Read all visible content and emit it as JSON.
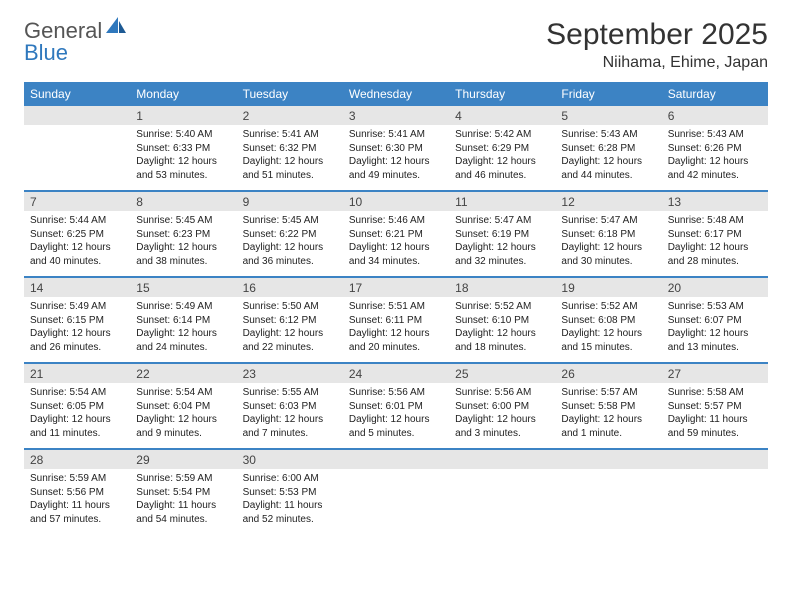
{
  "brand": {
    "text1": "General",
    "text2": "Blue"
  },
  "title": "September 2025",
  "location": "Niihama, Ehime, Japan",
  "colors": {
    "header_bg": "#3c83c4",
    "header_fg": "#ffffff",
    "num_row_bg": "#e6e6e6",
    "week_border": "#3c83c4",
    "brand_blue": "#2f78bd",
    "brand_gray": "#555555",
    "page_bg": "#ffffff",
    "text": "#222222"
  },
  "day_names": [
    "Sunday",
    "Monday",
    "Tuesday",
    "Wednesday",
    "Thursday",
    "Friday",
    "Saturday"
  ],
  "weeks": [
    {
      "nums": [
        "",
        "1",
        "2",
        "3",
        "4",
        "5",
        "6"
      ],
      "cells": [
        null,
        {
          "sunrise": "Sunrise: 5:40 AM",
          "sunset": "Sunset: 6:33 PM",
          "day1": "Daylight: 12 hours",
          "day2": "and 53 minutes."
        },
        {
          "sunrise": "Sunrise: 5:41 AM",
          "sunset": "Sunset: 6:32 PM",
          "day1": "Daylight: 12 hours",
          "day2": "and 51 minutes."
        },
        {
          "sunrise": "Sunrise: 5:41 AM",
          "sunset": "Sunset: 6:30 PM",
          "day1": "Daylight: 12 hours",
          "day2": "and 49 minutes."
        },
        {
          "sunrise": "Sunrise: 5:42 AM",
          "sunset": "Sunset: 6:29 PM",
          "day1": "Daylight: 12 hours",
          "day2": "and 46 minutes."
        },
        {
          "sunrise": "Sunrise: 5:43 AM",
          "sunset": "Sunset: 6:28 PM",
          "day1": "Daylight: 12 hours",
          "day2": "and 44 minutes."
        },
        {
          "sunrise": "Sunrise: 5:43 AM",
          "sunset": "Sunset: 6:26 PM",
          "day1": "Daylight: 12 hours",
          "day2": "and 42 minutes."
        }
      ]
    },
    {
      "nums": [
        "7",
        "8",
        "9",
        "10",
        "11",
        "12",
        "13"
      ],
      "cells": [
        {
          "sunrise": "Sunrise: 5:44 AM",
          "sunset": "Sunset: 6:25 PM",
          "day1": "Daylight: 12 hours",
          "day2": "and 40 minutes."
        },
        {
          "sunrise": "Sunrise: 5:45 AM",
          "sunset": "Sunset: 6:23 PM",
          "day1": "Daylight: 12 hours",
          "day2": "and 38 minutes."
        },
        {
          "sunrise": "Sunrise: 5:45 AM",
          "sunset": "Sunset: 6:22 PM",
          "day1": "Daylight: 12 hours",
          "day2": "and 36 minutes."
        },
        {
          "sunrise": "Sunrise: 5:46 AM",
          "sunset": "Sunset: 6:21 PM",
          "day1": "Daylight: 12 hours",
          "day2": "and 34 minutes."
        },
        {
          "sunrise": "Sunrise: 5:47 AM",
          "sunset": "Sunset: 6:19 PM",
          "day1": "Daylight: 12 hours",
          "day2": "and 32 minutes."
        },
        {
          "sunrise": "Sunrise: 5:47 AM",
          "sunset": "Sunset: 6:18 PM",
          "day1": "Daylight: 12 hours",
          "day2": "and 30 minutes."
        },
        {
          "sunrise": "Sunrise: 5:48 AM",
          "sunset": "Sunset: 6:17 PM",
          "day1": "Daylight: 12 hours",
          "day2": "and 28 minutes."
        }
      ]
    },
    {
      "nums": [
        "14",
        "15",
        "16",
        "17",
        "18",
        "19",
        "20"
      ],
      "cells": [
        {
          "sunrise": "Sunrise: 5:49 AM",
          "sunset": "Sunset: 6:15 PM",
          "day1": "Daylight: 12 hours",
          "day2": "and 26 minutes."
        },
        {
          "sunrise": "Sunrise: 5:49 AM",
          "sunset": "Sunset: 6:14 PM",
          "day1": "Daylight: 12 hours",
          "day2": "and 24 minutes."
        },
        {
          "sunrise": "Sunrise: 5:50 AM",
          "sunset": "Sunset: 6:12 PM",
          "day1": "Daylight: 12 hours",
          "day2": "and 22 minutes."
        },
        {
          "sunrise": "Sunrise: 5:51 AM",
          "sunset": "Sunset: 6:11 PM",
          "day1": "Daylight: 12 hours",
          "day2": "and 20 minutes."
        },
        {
          "sunrise": "Sunrise: 5:52 AM",
          "sunset": "Sunset: 6:10 PM",
          "day1": "Daylight: 12 hours",
          "day2": "and 18 minutes."
        },
        {
          "sunrise": "Sunrise: 5:52 AM",
          "sunset": "Sunset: 6:08 PM",
          "day1": "Daylight: 12 hours",
          "day2": "and 15 minutes."
        },
        {
          "sunrise": "Sunrise: 5:53 AM",
          "sunset": "Sunset: 6:07 PM",
          "day1": "Daylight: 12 hours",
          "day2": "and 13 minutes."
        }
      ]
    },
    {
      "nums": [
        "21",
        "22",
        "23",
        "24",
        "25",
        "26",
        "27"
      ],
      "cells": [
        {
          "sunrise": "Sunrise: 5:54 AM",
          "sunset": "Sunset: 6:05 PM",
          "day1": "Daylight: 12 hours",
          "day2": "and 11 minutes."
        },
        {
          "sunrise": "Sunrise: 5:54 AM",
          "sunset": "Sunset: 6:04 PM",
          "day1": "Daylight: 12 hours",
          "day2": "and 9 minutes."
        },
        {
          "sunrise": "Sunrise: 5:55 AM",
          "sunset": "Sunset: 6:03 PM",
          "day1": "Daylight: 12 hours",
          "day2": "and 7 minutes."
        },
        {
          "sunrise": "Sunrise: 5:56 AM",
          "sunset": "Sunset: 6:01 PM",
          "day1": "Daylight: 12 hours",
          "day2": "and 5 minutes."
        },
        {
          "sunrise": "Sunrise: 5:56 AM",
          "sunset": "Sunset: 6:00 PM",
          "day1": "Daylight: 12 hours",
          "day2": "and 3 minutes."
        },
        {
          "sunrise": "Sunrise: 5:57 AM",
          "sunset": "Sunset: 5:58 PM",
          "day1": "Daylight: 12 hours",
          "day2": "and 1 minute."
        },
        {
          "sunrise": "Sunrise: 5:58 AM",
          "sunset": "Sunset: 5:57 PM",
          "day1": "Daylight: 11 hours",
          "day2": "and 59 minutes."
        }
      ]
    },
    {
      "nums": [
        "28",
        "29",
        "30",
        "",
        "",
        "",
        ""
      ],
      "cells": [
        {
          "sunrise": "Sunrise: 5:59 AM",
          "sunset": "Sunset: 5:56 PM",
          "day1": "Daylight: 11 hours",
          "day2": "and 57 minutes."
        },
        {
          "sunrise": "Sunrise: 5:59 AM",
          "sunset": "Sunset: 5:54 PM",
          "day1": "Daylight: 11 hours",
          "day2": "and 54 minutes."
        },
        {
          "sunrise": "Sunrise: 6:00 AM",
          "sunset": "Sunset: 5:53 PM",
          "day1": "Daylight: 11 hours",
          "day2": "and 52 minutes."
        },
        null,
        null,
        null,
        null
      ]
    }
  ]
}
